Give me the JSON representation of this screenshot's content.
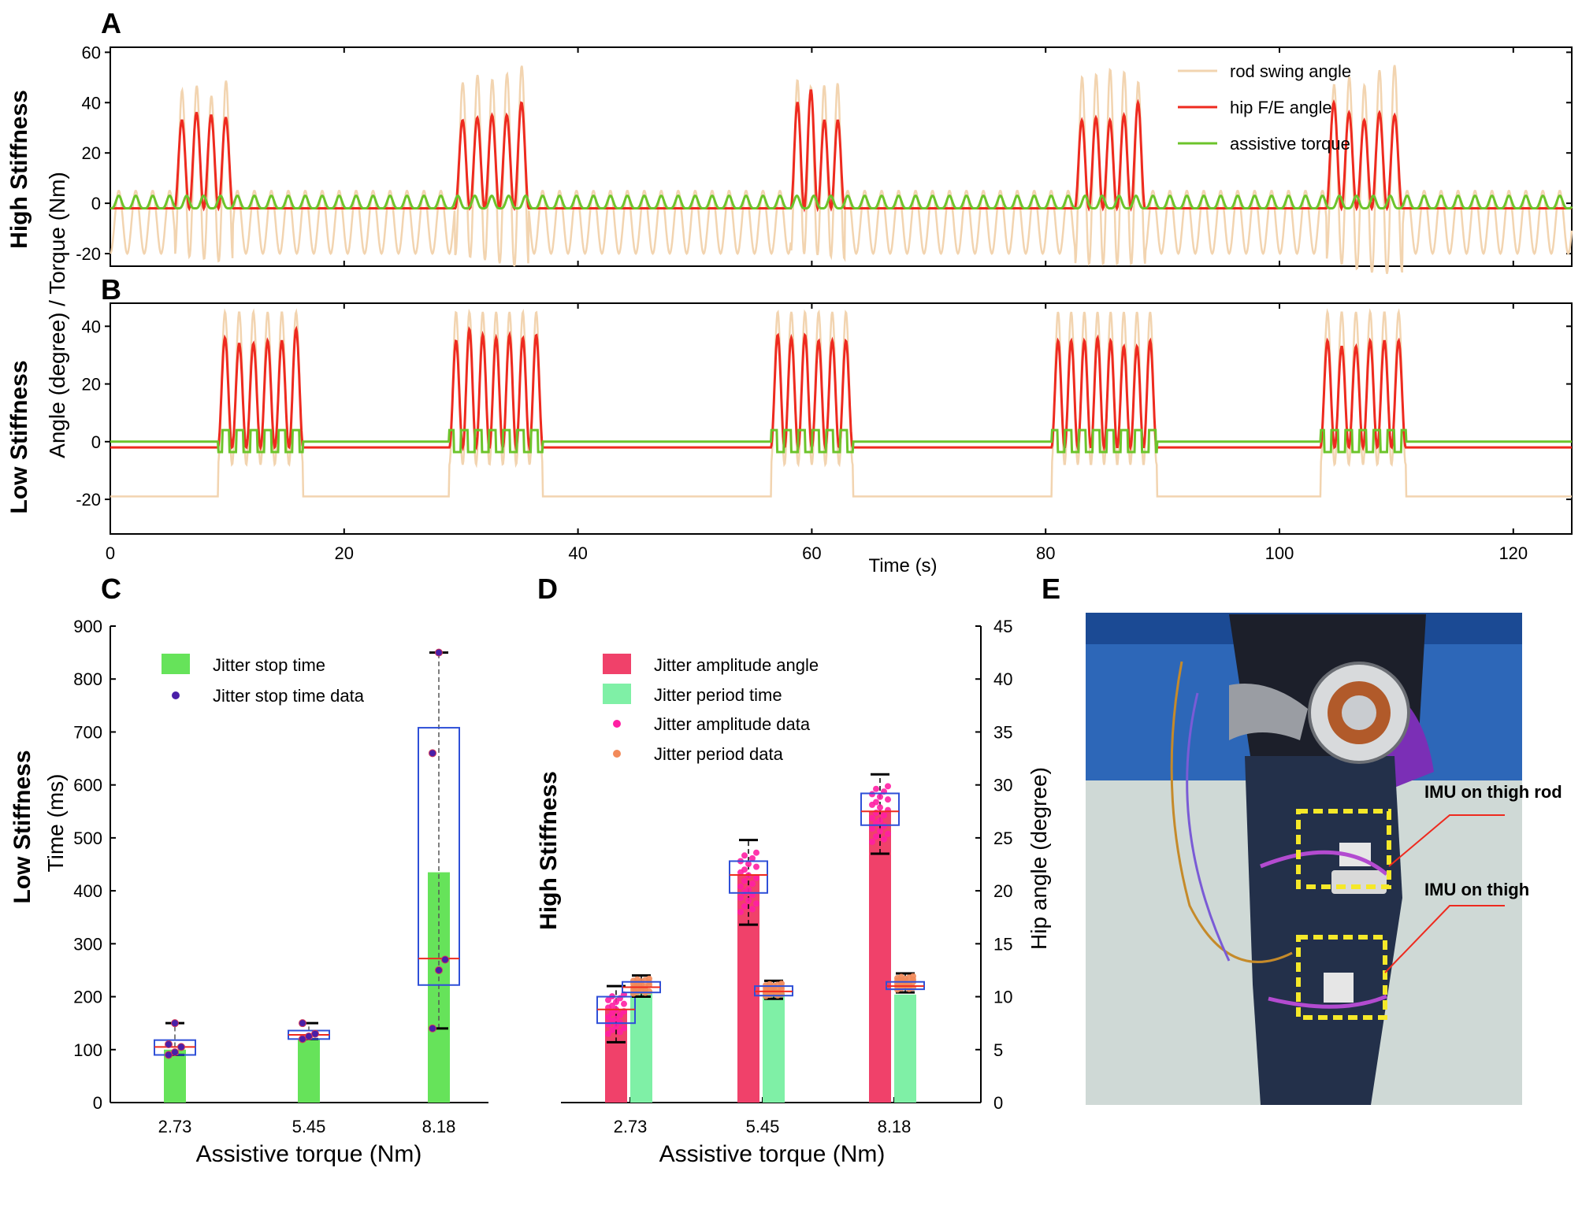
{
  "panels": {
    "a": "A",
    "b": "B",
    "c": "C",
    "d": "D",
    "e": "E"
  },
  "side_labels": {
    "top": "High Stiffness",
    "bottom": "Low Stiffness",
    "c": "Low Stiffness",
    "d": "High Stiffness"
  },
  "ab_ylabel": "Angle (degree) / Torque (Nm)",
  "ab_xlabel": "Time (s)",
  "c_ylabel": "Time (ms)",
  "d_ylabel": "Hip angle (degree)",
  "cd_xlabel": "Assistive torque (Nm)",
  "photo": {
    "annot1": "IMU on thigh rod",
    "annot2": "IMU on thigh"
  },
  "colors": {
    "rod": "#f2d4b0",
    "hip": "#ee2a1f",
    "torque": "#6cc42b",
    "jitter_stop": "#66e35a",
    "amp": "#f0416a",
    "period": "#7ff0a6",
    "box": "#2f50d8",
    "median": "#ee2a1f"
  },
  "chart_data": [
    {
      "id": "A",
      "type": "line",
      "xlim": [
        0,
        125
      ],
      "ylim": [
        -25,
        62
      ],
      "yticks": [
        -20,
        0,
        20,
        40,
        60
      ],
      "xticks": [
        0,
        20,
        40,
        60,
        80,
        100,
        120
      ],
      "legend_position": "top-right",
      "series": [
        {
          "name": "rod swing angle",
          "color": "#f2d4b0",
          "gait_bursts_s": [
            [
              5.5,
              10.5
            ],
            [
              29.5,
              35.8
            ],
            [
              58.2,
              62.8
            ],
            [
              82.5,
              88.5
            ],
            [
              104,
              110.5
            ]
          ],
          "burst_peaks": [
            52,
            53,
            48,
            53,
            55,
            57,
            54,
            55,
            57,
            54,
            54,
            54,
            54,
            55,
            57,
            56
          ],
          "baseline_range": [
            -20,
            5
          ]
        },
        {
          "name": "hip F/E angle",
          "color": "#ee2a1f",
          "burst_peaks": [
            33,
            36,
            35,
            34,
            33,
            34,
            35,
            35,
            40,
            45,
            33,
            33,
            33,
            34,
            33,
            35,
            40,
            36
          ],
          "baseline": -2
        },
        {
          "name": "assistive torque",
          "color": "#6cc42b",
          "range": [
            -2,
            3
          ]
        }
      ]
    },
    {
      "id": "B",
      "type": "line",
      "xlim": [
        0,
        125
      ],
      "ylim": [
        -32,
        48
      ],
      "yticks": [
        -20,
        0,
        20,
        40
      ],
      "xticks": [
        0,
        20,
        40,
        60,
        80,
        100,
        120
      ],
      "series": [
        {
          "name": "rod swing angle",
          "color": "#f2d4b0",
          "baseline": -19,
          "burst_peaks": 45
        },
        {
          "name": "hip F/E angle",
          "color": "#ee2a1f",
          "gait_bursts_s": [
            [
              9.2,
              16.5
            ],
            [
              29,
              37
            ],
            [
              56.5,
              63.5
            ],
            [
              80.5,
              89.5
            ],
            [
              103.5,
              110.8
            ]
          ],
          "burst_peaks": [
            36,
            34,
            34,
            35,
            35,
            39,
            37,
            36,
            37,
            36,
            37,
            35,
            35,
            35,
            35,
            36,
            35,
            33,
            33,
            35,
            35,
            35,
            34,
            38,
            36,
            36,
            37,
            37
          ],
          "baseline": -2
        },
        {
          "name": "assistive torque",
          "color": "#6cc42b",
          "range": [
            -4,
            4
          ]
        }
      ]
    },
    {
      "id": "C",
      "type": "bar",
      "categories": [
        "2.73",
        "5.45",
        "8.18"
      ],
      "ylim": [
        0,
        900
      ],
      "yticks": [
        0,
        100,
        200,
        300,
        400,
        500,
        600,
        700,
        800,
        900
      ],
      "legend_position": "top-left",
      "series": [
        {
          "name": "Jitter stop time",
          "values": [
            100,
            120,
            435
          ],
          "color": "#66e35a"
        }
      ],
      "boxes": [
        {
          "q1": 90,
          "median": 105,
          "q3": 118,
          "whisker_low": 90,
          "whisker_high": 150
        },
        {
          "q1": 120,
          "median": 128,
          "q3": 136,
          "whisker_low": 120,
          "whisker_high": 150
        },
        {
          "q1": 222,
          "median": 272,
          "q3": 708,
          "whisker_low": 140,
          "whisker_high": 850
        }
      ],
      "points_name": "Jitter stop time data",
      "points": [
        [
          90,
          95,
          105,
          110,
          150
        ],
        [
          120,
          125,
          130,
          150
        ],
        [
          140,
          250,
          270,
          660,
          850
        ]
      ]
    },
    {
      "id": "D",
      "type": "bar",
      "categories": [
        "2.73",
        "5.45",
        "8.18"
      ],
      "ylim": [
        0,
        45
      ],
      "yticks": [
        0,
        5,
        10,
        15,
        20,
        25,
        30,
        35,
        40,
        45
      ],
      "legend_position": "top-left",
      "series": [
        {
          "name": "Jitter amplitude angle",
          "values": [
            8.8,
            21.5,
            27.5
          ],
          "color": "#f0416a"
        },
        {
          "name": "Jitter period time",
          "values": [
            10.5,
            10.4,
            10.2
          ],
          "color": "#7ff0a6"
        }
      ],
      "amp_boxes": [
        {
          "q1": 7.5,
          "median": 8.8,
          "q3": 10,
          "whisker_low": 5.7,
          "whisker_high": 11
        },
        {
          "q1": 19.8,
          "median": 21.5,
          "q3": 22.8,
          "whisker_low": 16.8,
          "whisker_high": 24.8
        },
        {
          "q1": 26.2,
          "median": 27.5,
          "q3": 29.2,
          "whisker_low": 23.5,
          "whisker_high": 31
        }
      ],
      "period_boxes": [
        {
          "q1": 10.4,
          "median": 10.9,
          "q3": 11.4,
          "whisker_low": 10,
          "whisker_high": 12
        },
        {
          "q1": 10.1,
          "median": 10.5,
          "q3": 11,
          "whisker_low": 9.8,
          "whisker_high": 11.5
        },
        {
          "q1": 10.7,
          "median": 11,
          "q3": 11.4,
          "whisker_low": 10.4,
          "whisker_high": 12.2
        }
      ],
      "amp_points_name": "Jitter amplitude data",
      "period_points_name": "Jitter period data"
    }
  ]
}
